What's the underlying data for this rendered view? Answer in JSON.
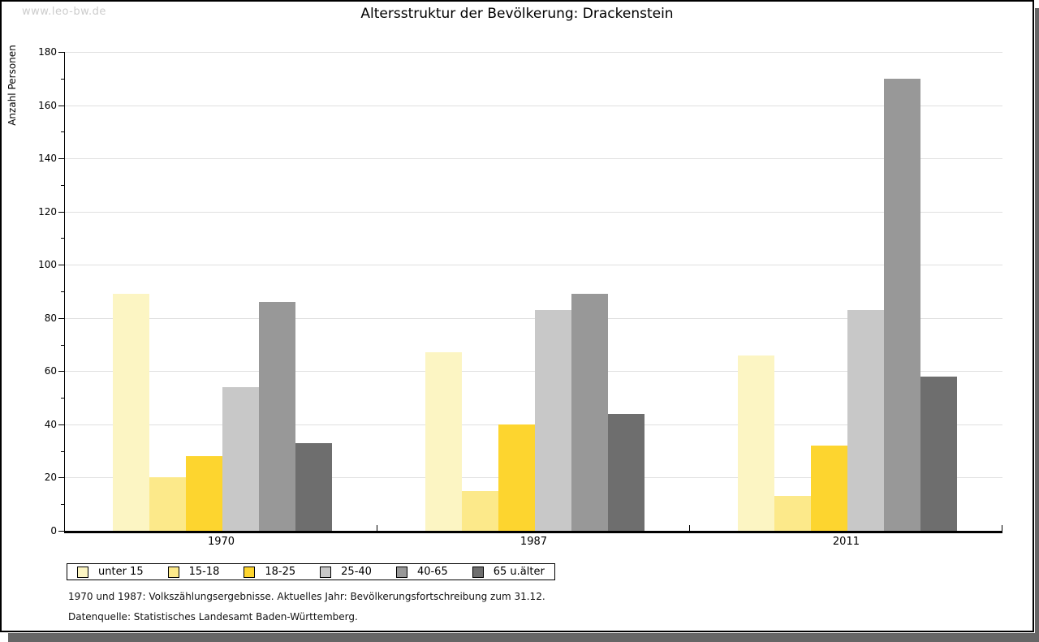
{
  "watermark": "www.leo-bw.de",
  "title": "Altersstruktur der Bevölkerung: Drackenstein",
  "chart_data": {
    "type": "bar",
    "title": "Altersstruktur der Bevölkerung: Drackenstein",
    "xlabel": "",
    "ylabel": "Anzahl Personen",
    "categories": [
      "1970",
      "1987",
      "2011"
    ],
    "series": [
      {
        "name": "unter 15",
        "color": "#fcf5c3",
        "values": [
          89,
          67,
          66
        ]
      },
      {
        "name": "15-18",
        "color": "#fce98a",
        "values": [
          20,
          15,
          13
        ]
      },
      {
        "name": "18-25",
        "color": "#fdd52f",
        "values": [
          28,
          40,
          32
        ]
      },
      {
        "name": "25-40",
        "color": "#c8c8c8",
        "values": [
          54,
          83,
          83
        ]
      },
      {
        "name": "40-65",
        "color": "#989898",
        "values": [
          86,
          89,
          170
        ]
      },
      {
        "name": "65 u.älter",
        "color": "#6e6e6e",
        "values": [
          33,
          44,
          58
        ]
      }
    ],
    "ylim": [
      0,
      180
    ],
    "ytick_step": 20,
    "yminor_step": 10,
    "grid": true,
    "gridline_color": "#e0e0e0",
    "legend_position": "bottom-left"
  },
  "footer": {
    "line1": "1970 und 1987: Volkszählungsergebnisse. Aktuelles Jahr: Bevölkerungsfortschreibung zum 31.12.",
    "line2": "Datenquelle: Statistisches Landesamt Baden-Württemberg."
  }
}
